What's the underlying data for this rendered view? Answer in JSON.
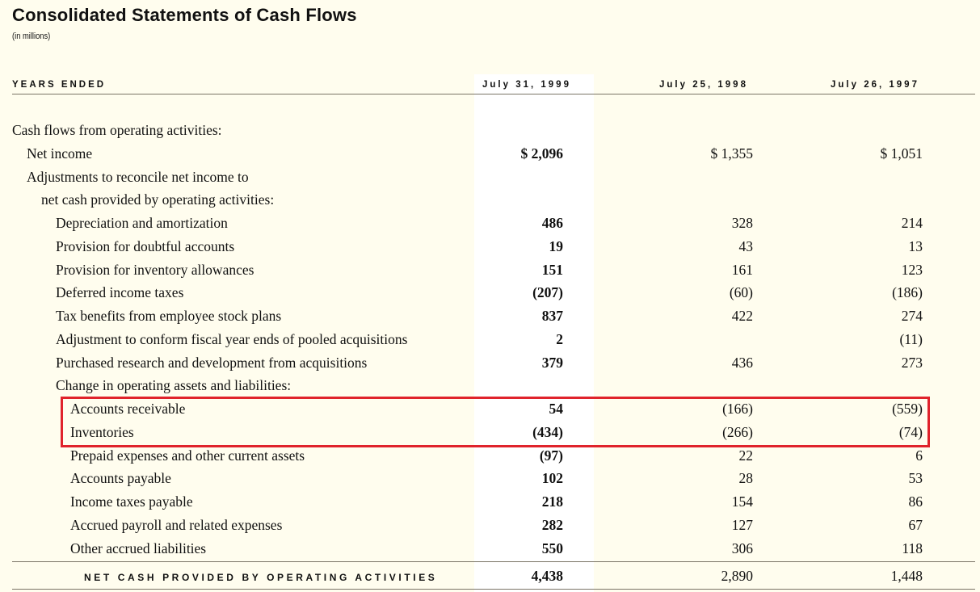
{
  "title": "Consolidated Statements of Cash Flows",
  "subtitle": "(in millions)",
  "header": {
    "label": "YEARS ENDED",
    "columns": [
      "July 31, 1999",
      "July 25, 1998",
      "July 26, 1997"
    ]
  },
  "highlight_color": "#e0232b",
  "rows": [
    {
      "label": "Cash flows from operating activities:",
      "indent": 0,
      "values": [
        "",
        "",
        ""
      ]
    },
    {
      "label": "Net income",
      "indent": 1,
      "values": [
        "$ 2,096",
        "$ 1,355",
        "$ 1,051"
      ]
    },
    {
      "label": "Adjustments to reconcile net income to",
      "indent": 1,
      "values": [
        "",
        "",
        ""
      ]
    },
    {
      "label": "net cash provided by operating activities:",
      "indent": 2,
      "values": [
        "",
        "",
        ""
      ]
    },
    {
      "label": "Depreciation and amortization",
      "indent": 3,
      "values": [
        "486",
        "328",
        "214"
      ]
    },
    {
      "label": "Provision for doubtful accounts",
      "indent": 3,
      "values": [
        "19",
        "43",
        "13"
      ]
    },
    {
      "label": "Provision for inventory allowances",
      "indent": 3,
      "values": [
        "151",
        "161",
        "123"
      ]
    },
    {
      "label": "Deferred income taxes",
      "indent": 3,
      "values": [
        "(207)",
        "(60)",
        "(186)"
      ]
    },
    {
      "label": "Tax benefits from employee stock plans",
      "indent": 3,
      "values": [
        "837",
        "422",
        "274"
      ]
    },
    {
      "label": "Adjustment to conform fiscal year ends of pooled acquisitions",
      "indent": 3,
      "values": [
        "2",
        "",
        "(11)"
      ]
    },
    {
      "label": "Purchased research and development from acquisitions",
      "indent": 3,
      "values": [
        "379",
        "436",
        "273"
      ]
    },
    {
      "label": "Change in operating assets and liabilities:",
      "indent": 3,
      "values": [
        "",
        "",
        ""
      ]
    },
    {
      "label": "Accounts receivable",
      "indent": 4,
      "values": [
        "54",
        "(166)",
        "(559)"
      ]
    },
    {
      "label": "Inventories",
      "indent": 4,
      "values": [
        "(434)",
        "(266)",
        "(74)"
      ]
    },
    {
      "label": "Prepaid expenses and other current assets",
      "indent": 4,
      "values": [
        "(97)",
        "22",
        "6"
      ]
    },
    {
      "label": "Accounts payable",
      "indent": 4,
      "values": [
        "102",
        "28",
        "53"
      ]
    },
    {
      "label": "Income taxes payable",
      "indent": 4,
      "values": [
        "218",
        "154",
        "86"
      ]
    },
    {
      "label": "Accrued payroll and related expenses",
      "indent": 4,
      "values": [
        "282",
        "127",
        "67"
      ]
    },
    {
      "label": "Other accrued liabilities",
      "indent": 4,
      "values": [
        "550",
        "306",
        "118"
      ]
    }
  ],
  "total": {
    "label": "NET CASH PROVIDED BY OPERATING ACTIVITIES",
    "values": [
      "4,438",
      "2,890",
      "1,448"
    ]
  }
}
